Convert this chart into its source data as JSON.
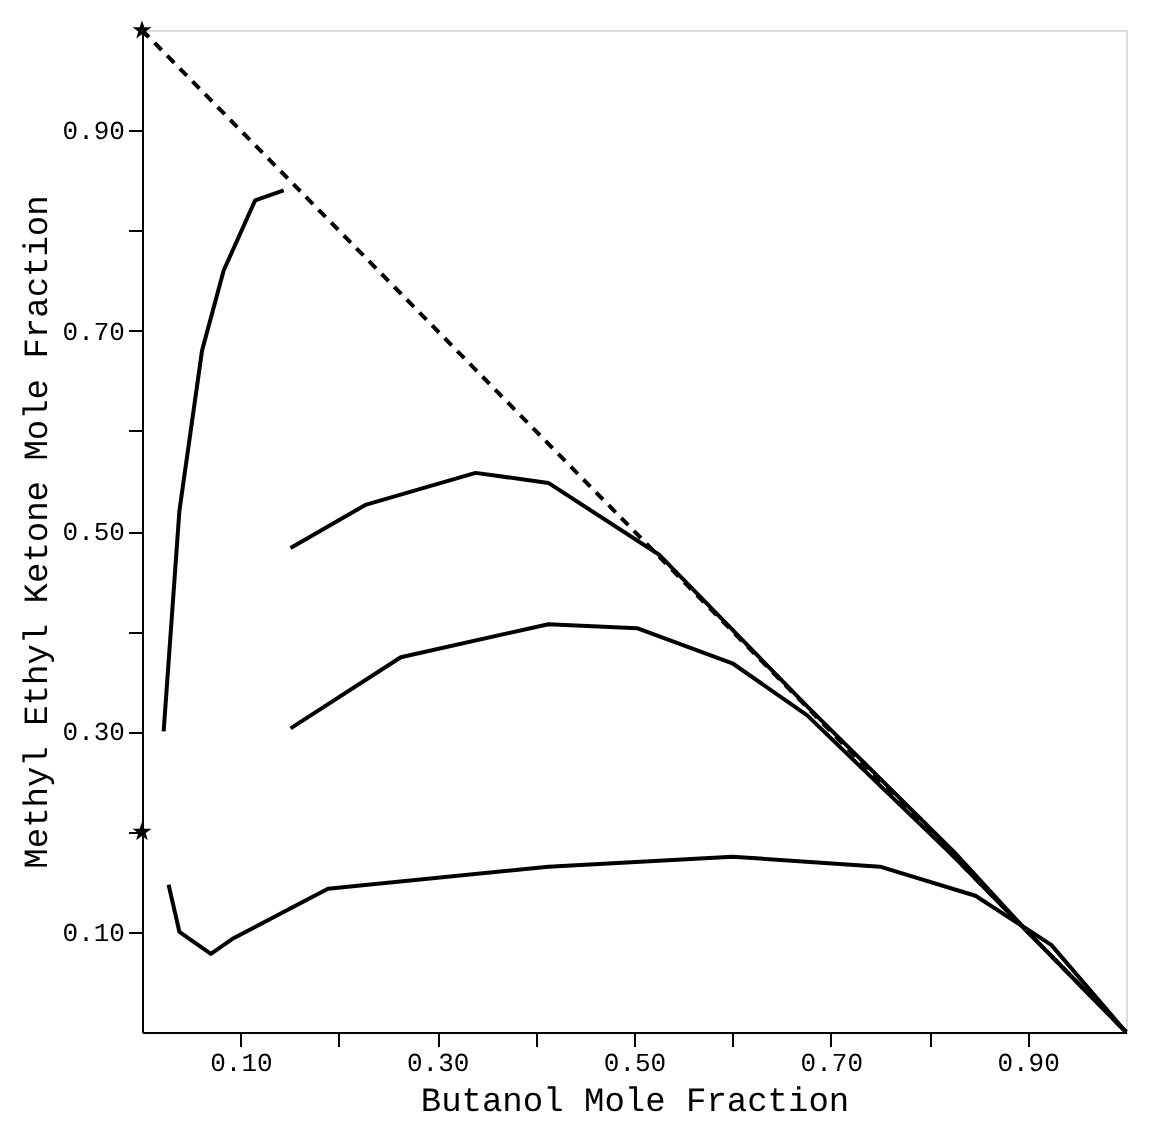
{
  "chart_data": {
    "type": "line",
    "xlabel": "Butanol Mole Fraction",
    "ylabel": "Methyl Ethyl Ketone Mole Fraction",
    "xlim": [
      0,
      1
    ],
    "ylim": [
      0,
      1
    ],
    "xticks": [
      {
        "value": 0.1,
        "label": "0.10"
      },
      {
        "value": 0.2,
        "label": null
      },
      {
        "value": 0.3,
        "label": "0.30"
      },
      {
        "value": 0.4,
        "label": null
      },
      {
        "value": 0.5,
        "label": "0.50"
      },
      {
        "value": 0.6,
        "label": null
      },
      {
        "value": 0.7,
        "label": "0.70"
      },
      {
        "value": 0.8,
        "label": null
      },
      {
        "value": 0.9,
        "label": "0.90"
      }
    ],
    "yticks": [
      {
        "value": 0.1,
        "label": "0.10"
      },
      {
        "value": 0.2,
        "label": null
      },
      {
        "value": 0.3,
        "label": "0.30"
      },
      {
        "value": 0.4,
        "label": null
      },
      {
        "value": 0.5,
        "label": "0.50"
      },
      {
        "value": 0.6,
        "label": null
      },
      {
        "value": 0.7,
        "label": "0.70"
      },
      {
        "value": 0.8,
        "label": null
      },
      {
        "value": 0.9,
        "label": "0.90"
      }
    ],
    "grid": false,
    "marker": "none",
    "line_style": "solid",
    "series": [
      {
        "color": "#000000",
        "line_style": "dashed",
        "x": [
          0,
          1
        ],
        "values": [
          1,
          0
        ]
      },
      {
        "color": "#000000",
        "x": [
          0.022,
          0.038,
          0.061,
          0.083,
          0.115,
          0.144
        ],
        "values": [
          0.3,
          0.52,
          0.68,
          0.76,
          0.83,
          0.84
        ]
      },
      {
        "color": "#000000",
        "x": [
          0.151,
          0.227,
          0.339,
          0.413,
          0.526,
          0.676,
          0.825,
          0.9,
          1.0
        ],
        "values": [
          0.483,
          0.526,
          0.558,
          0.548,
          0.476,
          0.325,
          0.18,
          0.1,
          0.0
        ]
      },
      {
        "color": "#000000",
        "x": [
          0.151,
          0.263,
          0.413,
          0.503,
          0.6,
          0.676,
          0.825,
          0.9,
          1.0
        ],
        "values": [
          0.303,
          0.374,
          0.407,
          0.403,
          0.368,
          0.316,
          0.175,
          0.1,
          0.0
        ]
      },
      {
        "color": "#000000",
        "x": [
          0.027,
          0.038,
          0.07,
          0.092,
          0.189,
          0.413,
          0.6,
          0.75,
          0.847,
          0.924,
          1.0
        ],
        "values": [
          0.147,
          0.1,
          0.078,
          0.093,
          0.143,
          0.165,
          0.175,
          0.165,
          0.136,
          0.087,
          0.0
        ]
      },
      {
        "color": "#000000",
        "type": "scatter",
        "marker": "star",
        "x": [
          0,
          0
        ],
        "values": [
          1,
          0.2
        ]
      }
    ]
  }
}
